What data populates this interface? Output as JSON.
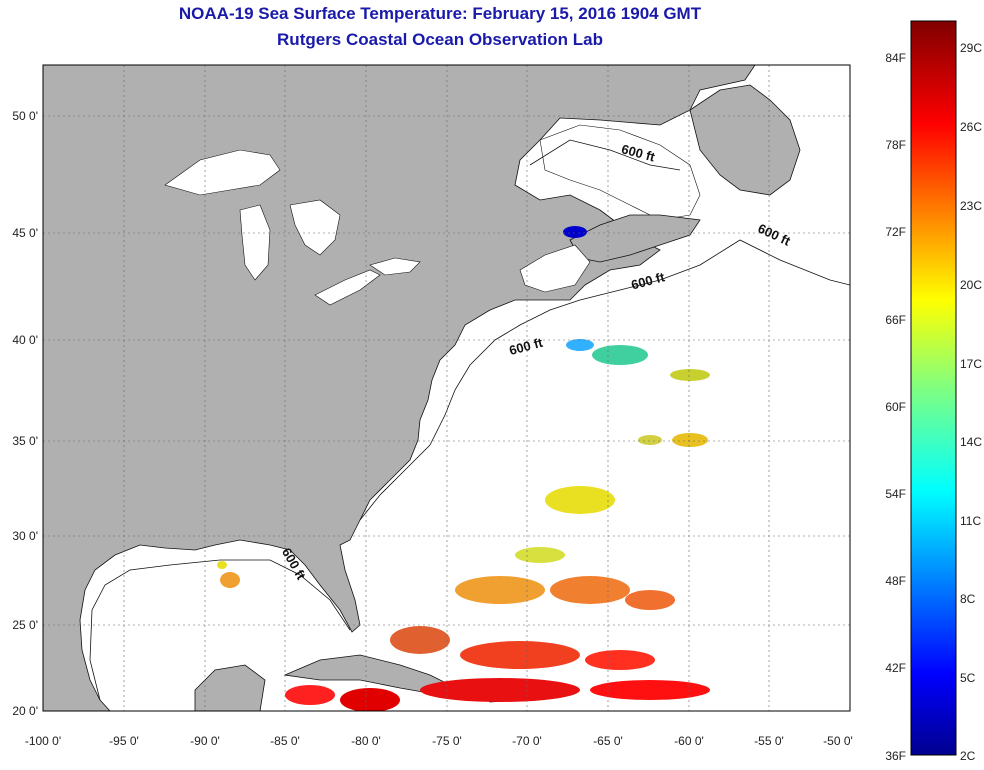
{
  "title_line1": "NOAA-19 Sea Surface Temperature:  February 15, 2016 1904 GMT",
  "title_line2": "Rutgers Coastal Ocean Observation Lab",
  "map": {
    "lon_ticks": [
      "-100 0'",
      "-95 0'",
      "-90 0'",
      "-85 0'",
      "-80 0'",
      "-75 0'",
      "-70 0'",
      "-65 0'",
      "-60 0'",
      "-55 0'",
      "-50 0'"
    ],
    "lat_ticks": [
      "50 0'",
      "45 0'",
      "40 0'",
      "35 0'",
      "30 0'",
      "25 0'",
      "20 0'"
    ],
    "contour_labels": [
      "600 ft",
      "600 ft",
      "600 ft",
      "600 ft",
      "600 ft"
    ],
    "colors": {
      "land": "#b0b0b0",
      "ocean": "#ffffff",
      "grid": "#666666"
    }
  },
  "colorbar": {
    "f_labels": [
      "84F",
      "78F",
      "72F",
      "66F",
      "60F",
      "54F",
      "48F",
      "42F",
      "36F"
    ],
    "c_labels": [
      "29C",
      "26C",
      "23C",
      "20C",
      "17C",
      "14C",
      "11C",
      "8C",
      "5C",
      "2C"
    ]
  }
}
